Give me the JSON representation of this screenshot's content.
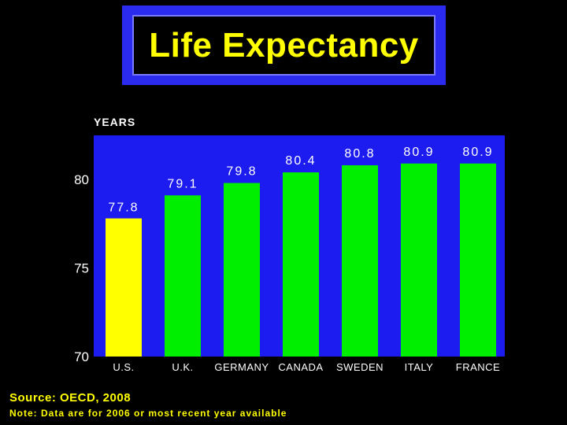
{
  "title": "Life Expectancy",
  "chart_data": {
    "type": "bar",
    "ylabel": "YEARS",
    "ylim": [
      70,
      82
    ],
    "yticks": [
      "80",
      "75",
      "70"
    ],
    "categories": [
      "U.S.",
      "U.K.",
      "GERMANY",
      "CANADA",
      "SWEDEN",
      "ITALY",
      "FRANCE"
    ],
    "values": [
      77.8,
      79.1,
      79.8,
      80.4,
      80.8,
      80.9,
      80.9
    ],
    "labels": [
      "77.8",
      "79.1",
      "79.8",
      "80.4",
      "80.8",
      "80.9",
      "80.9"
    ],
    "colors": [
      "#ffff00",
      "#00ee00",
      "#00ee00",
      "#00ee00",
      "#00ee00",
      "#00ee00",
      "#00ee00"
    ],
    "plot_background": "#1c1cf0"
  },
  "footer": {
    "source": "Source: OECD, 2008",
    "note": "Note: Data are for 2006 or most recent year available"
  }
}
